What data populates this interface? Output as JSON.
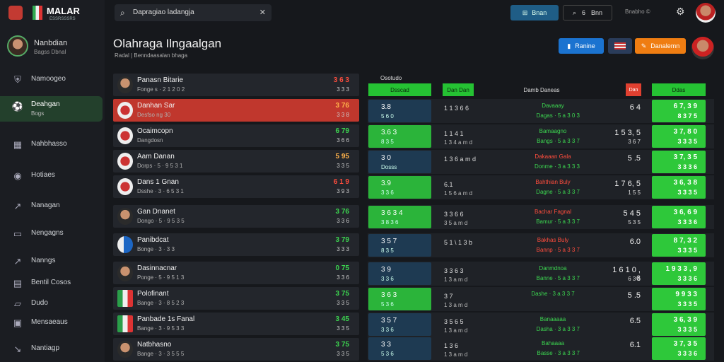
{
  "brand": {
    "name": "MALAR",
    "sub": "ESSRSSSRS"
  },
  "search": {
    "value": "Dapragiao ladangja",
    "clear_icon": "close-icon"
  },
  "topbar": {
    "button1_label": "Bnan",
    "button2_value": "6",
    "button2_label": "Bnn",
    "status_text": "Bnabho ©"
  },
  "sidebar": {
    "profile": {
      "name": "Nanbdian",
      "sub": "Bagss Dbnal"
    },
    "items": [
      {
        "label": "Namoogeo"
      },
      {
        "label": "Deahgan",
        "sub": "Bogs"
      },
      {
        "label": "Nahbhasso"
      },
      {
        "label": "Hotiaes"
      },
      {
        "label": "Nanagan"
      },
      {
        "label": "Nengagns"
      },
      {
        "label": "Nanngs"
      },
      {
        "label": "Bentil Cosos"
      },
      {
        "label": "Dudo"
      },
      {
        "label": "Mensaeaus"
      },
      {
        "label": "Nantiagp"
      }
    ]
  },
  "header": {
    "title": "Olahraga Ilngaalgan",
    "subtitle": "Radal | Benndaasalan bhaga",
    "blue_button": "Ranine",
    "orange_button": "Danalemn"
  },
  "matches": [
    {
      "name": "Panasn Bitarie",
      "sub": "Fonge s · 2 1 2 0 2",
      "odd": "3 6 3",
      "odd_color": "r",
      "odd2": "3 3 3"
    },
    {
      "name": "Danhan Sar",
      "sub": "Desfso ng 30",
      "odd": "3 76",
      "odd_color": "o",
      "odd2": "3 3 8"
    },
    {
      "name": "Ocaimcopn",
      "sub": "Dangdosn",
      "odd": "6 79",
      "odd_color": "g",
      "odd2": "3 6 6"
    },
    {
      "name": "Aam Danan",
      "sub": "Dorps · 5 · 9 5 3 1",
      "odd": "5 95",
      "odd_color": "o",
      "odd2": "3 3 5"
    },
    {
      "name": "Dans 1 Gnan",
      "sub": "Dsshe · 3 · 6 5 3 1",
      "odd": "6 1 9",
      "odd_color": "r",
      "odd2": "3 9 3"
    },
    {
      "name": "Gan Dnanet",
      "sub": "Dongo · 5 · 9 5 3 5",
      "odd": "3 76",
      "odd_color": "g",
      "odd2": "3 3 6"
    },
    {
      "name": "Panibdcat",
      "sub": "Bonge · 3 · 3 3",
      "odd": "3 79",
      "odd_color": "g",
      "odd2": "3 3 3"
    },
    {
      "name": "Dasinnacnar",
      "sub": "Ponge · 5 · 9 5 1 3",
      "odd": "0 75",
      "odd_color": "g",
      "odd2": "3 3 6"
    },
    {
      "name": "Polofinant",
      "sub": "Bange · 3 · 8 5 2 3",
      "odd": "3 75",
      "odd_color": "g",
      "odd2": "3 3 5"
    },
    {
      "name": "Panbade 1s Fanal",
      "sub": "Bange · 3 · 9 5 3 3",
      "odd": "3 45",
      "odd_color": "g",
      "odd2": "3 3 5"
    },
    {
      "name": "Natbhasno",
      "sub": "Bange · 3 · 3 5 5 5",
      "odd": "3 75",
      "odd_color": "g",
      "odd2": "3 3 5"
    }
  ],
  "table": {
    "label": "Osotudo",
    "headers": [
      "Dsscad",
      "Dan Dan",
      "Damb Daneas",
      "Dan",
      "Ddas"
    ],
    "rows": [
      {
        "c1a": "3.8",
        "c1b": "5 6 0",
        "c1_color": "blue",
        "c2a": "1 1 3 6 6",
        "c2b": "",
        "c3a": "Davaaay",
        "c3a_color": "g",
        "c3b": "Dagas · 5 a 3 0 3",
        "c3b_color": "g",
        "c4a": "6 4",
        "c4b": "",
        "c5a": "6 7, 3 9",
        "c5b": "8 3 7 5"
      },
      {
        "c1a": "3.6 3",
        "c1b": "8 3 5",
        "c1_color": "green",
        "c2a": "1 1 4 1",
        "c2b": "1 3 4 a m d",
        "c3a": "Bamaagno",
        "c3a_color": "g",
        "c3b": "Bangs · 5 a 3 3 7",
        "c3b_color": "g",
        "c4a": "1 5 3, 5",
        "c4b": "3 6 7",
        "c5a": "3 7, 8 0",
        "c5b": "3 3 3 5"
      },
      {
        "c1a": "3 0",
        "c1b": "Dosss",
        "c1_color": "blue",
        "c2a": "1 3 6 a m d",
        "c2b": "",
        "c3a": "Dakaaan Gala",
        "c3a_color": "r",
        "c3b": "Donme · 3 a 3 3 3",
        "c3b_color": "g",
        "c4a": "5 .5",
        "c4b": "",
        "c5a": "3 7, 3 5",
        "c5b": "3 3 3 6"
      },
      {
        "c1a": "3.9",
        "c1b": "3 3 6",
        "c1_color": "green",
        "c2a": "6.1",
        "c2b": "1 5 6 a m d",
        "c3a": "Bahthian Buly",
        "c3a_color": "r",
        "c3b": "Dagne · 5 a 3 3 7",
        "c3b_color": "g",
        "c4a": "1 7 6, 5",
        "c4b": "1 5 5",
        "c5a": "3 6, 3 8",
        "c5b": "3 3 3 5"
      },
      {
        "c1a": "3 6 3 4",
        "c1b": "3 8 3 6",
        "c1_color": "green",
        "c2a": "3 3 6 6",
        "c2b": "3 5 a m d",
        "c3a": "Bachar Fagnal",
        "c3a_color": "r",
        "c3b": "Bamur · 5 a 3 3 7",
        "c3b_color": "g",
        "c4a": "5 4 5",
        "c4b": "5 3 5",
        "c5a": "3 6, 6 9",
        "c5b": "3 3 3 6"
      },
      {
        "c1a": "3 5 7",
        "c1b": "8 3 5",
        "c1_color": "blue",
        "c2a": "5 1 \\ 1 3 b",
        "c2b": "",
        "c3a": "Bakhas Buly",
        "c3a_color": "r",
        "c3b": "Bannp · 5 a 3 3 7",
        "c3b_color": "r",
        "c4a": "6.0",
        "c4b": "",
        "c5a": "8 7, 3 2",
        "c5b": "3 3 3 5"
      },
      {
        "c1a": "3 9",
        "c1b": "3 3 6",
        "c1_color": "blue",
        "c2a": "3 3 6 3",
        "c2b": "1 3 a m d",
        "c3a": "Danmdnoa",
        "c3a_color": "g",
        "c3b": "Banne · 5 a 3 3 7",
        "c3b_color": "g",
        "c4a": "1 6 1 0 , 6",
        "c4b": "6 3 6",
        "c5a": "1 9 3 3 , 9",
        "c5b": "3 3 3 6"
      },
      {
        "c1a": "3 6 3",
        "c1b": "5 3 6",
        "c1_color": "green",
        "c2a": "3 7",
        "c2b": "1 3 a m d",
        "c3a": "Dashe · 3 a 3 3 7",
        "c3a_color": "g",
        "c3b": "",
        "c3b_color": "g",
        "c4a": "5 .5",
        "c4b": "",
        "c5a": "9 9 3 3",
        "c5b": "3 3 3 5"
      },
      {
        "c1a": "3 5 7",
        "c1b": "3 3 6",
        "c1_color": "blue",
        "c2a": "3 5 6 5",
        "c2b": "1 3 a m d",
        "c3a": "Banaaaaa",
        "c3a_color": "g",
        "c3b": "Dasha · 3 a 3 3 7",
        "c3b_color": "g",
        "c4a": "6.5",
        "c4b": "",
        "c5a": "3 6, 3 9",
        "c5b": "3 3 3 5"
      },
      {
        "c1a": "3 3",
        "c1b": "5 3 6",
        "c1_color": "blue",
        "c2a": "1 3 6",
        "c2b": "1 3 a m d",
        "c3a": "Bahaaaa",
        "c3a_color": "g",
        "c3b": "Basse · 3 a 3 3 7",
        "c3b_color": "g",
        "c4a": "6.1",
        "c4b": "",
        "c5a": "3 7, 3 5",
        "c5b": "3 3 3 6"
      }
    ]
  }
}
